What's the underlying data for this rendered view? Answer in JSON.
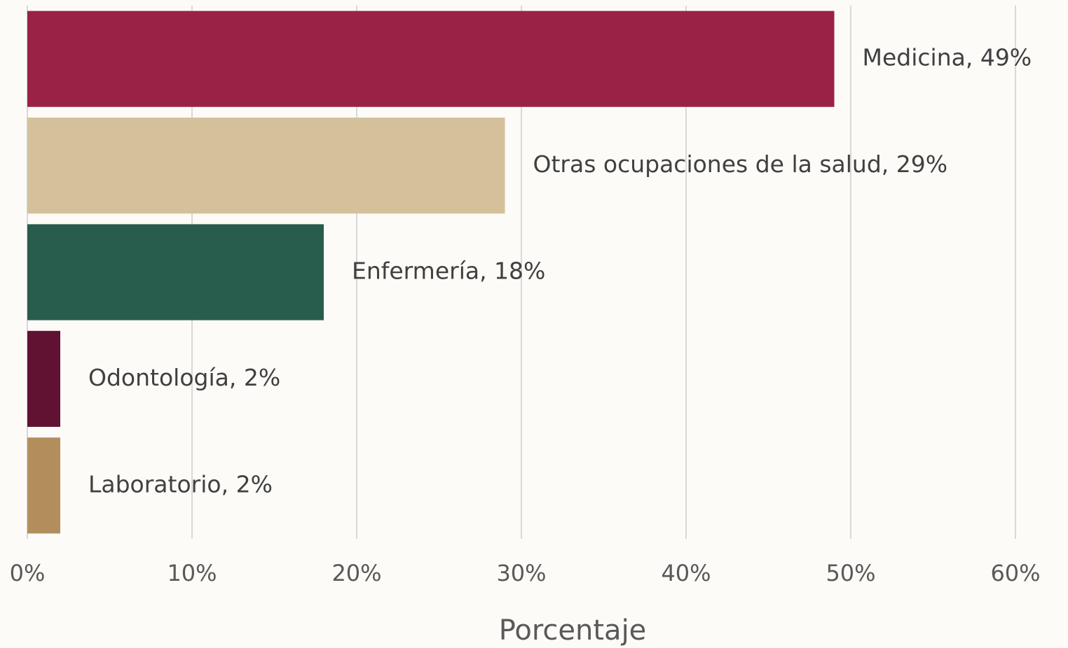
{
  "chart_data": {
    "type": "bar",
    "orientation": "horizontal",
    "values": [
      49,
      29,
      18,
      2,
      2
    ],
    "value_labels": [
      "Medicina,  49%",
      "Otras ocupaciones de la salud, 29%",
      "Enfermería, 18%",
      "Odontología, 2%",
      "Laboratorio, 2%"
    ],
    "colors": [
      "#9b2247",
      "#d4c19c",
      "#285c4d",
      "#611232",
      "#b38e5d"
    ],
    "xlim": [
      0,
      60
    ],
    "xticks": [
      {
        "value": 0,
        "label": "0%"
      },
      {
        "value": 10,
        "label": "10%"
      },
      {
        "value": 20,
        "label": "20%"
      },
      {
        "value": 30,
        "label": "30%"
      },
      {
        "value": 40,
        "label": "40%"
      },
      {
        "value": 50,
        "label": "50%"
      },
      {
        "value": 60,
        "label": "60%"
      }
    ],
    "xlabel": "Porcentaje",
    "grid": true
  }
}
